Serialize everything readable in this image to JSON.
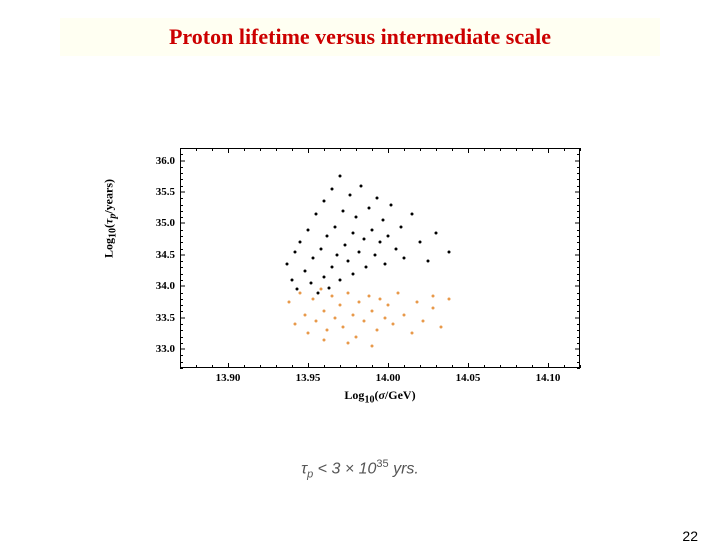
{
  "title": "Proton lifetime versus intermediate scale",
  "title_color": "#cc0000",
  "title_bg": "#fffff2",
  "page_number": "22",
  "caption_html": "τ<sub>p</sub> &lt; 3 × 10<sup>35</sup> yrs.",
  "chart": {
    "type": "scatter",
    "background_color": "#ffffff",
    "border_color": "#000000",
    "xlabel": "Log₁₀(σ/GeV)",
    "ylabel": "Log₁₀(τₚ/years)",
    "label_fontsize": 12,
    "tick_fontsize": 11,
    "xlim": [
      13.87,
      14.12
    ],
    "ylim": [
      32.7,
      36.2
    ],
    "xticks": [
      13.9,
      13.95,
      14.0,
      14.05,
      14.1
    ],
    "xtick_labels": [
      "13.90",
      "13.95",
      "14.00",
      "14.05",
      "14.10"
    ],
    "yticks": [
      33.0,
      33.5,
      34.0,
      34.5,
      35.0,
      35.5,
      36.0
    ],
    "ytick_labels": [
      "33.0",
      "33.5",
      "34.0",
      "34.5",
      "35.0",
      "35.5",
      "36.0"
    ],
    "x_minor_step": 0.01,
    "y_minor_step": 0.1,
    "marker_size": 3,
    "series": [
      {
        "color": "#000000",
        "points": [
          [
            13.937,
            34.35
          ],
          [
            13.94,
            34.1
          ],
          [
            13.942,
            34.55
          ],
          [
            13.943,
            33.95
          ],
          [
            13.945,
            34.7
          ],
          [
            13.948,
            34.25
          ],
          [
            13.95,
            34.9
          ],
          [
            13.952,
            34.05
          ],
          [
            13.953,
            34.45
          ],
          [
            13.955,
            35.15
          ],
          [
            13.956,
            33.9
          ],
          [
            13.958,
            34.6
          ],
          [
            13.96,
            35.35
          ],
          [
            13.96,
            34.15
          ],
          [
            13.962,
            34.8
          ],
          [
            13.963,
            33.98
          ],
          [
            13.965,
            35.55
          ],
          [
            13.965,
            34.3
          ],
          [
            13.967,
            34.95
          ],
          [
            13.968,
            34.5
          ],
          [
            13.97,
            35.75
          ],
          [
            13.97,
            34.1
          ],
          [
            13.972,
            35.2
          ],
          [
            13.973,
            34.65
          ],
          [
            13.975,
            34.4
          ],
          [
            13.976,
            35.45
          ],
          [
            13.978,
            34.85
          ],
          [
            13.978,
            34.2
          ],
          [
            13.98,
            35.1
          ],
          [
            13.982,
            34.55
          ],
          [
            13.983,
            35.6
          ],
          [
            13.985,
            34.75
          ],
          [
            13.986,
            34.3
          ],
          [
            13.988,
            35.25
          ],
          [
            13.99,
            34.9
          ],
          [
            13.992,
            34.5
          ],
          [
            13.993,
            35.4
          ],
          [
            13.995,
            34.7
          ],
          [
            13.997,
            35.05
          ],
          [
            13.998,
            34.35
          ],
          [
            14.0,
            34.8
          ],
          [
            14.002,
            35.3
          ],
          [
            14.005,
            34.6
          ],
          [
            14.008,
            34.95
          ],
          [
            14.01,
            34.45
          ],
          [
            14.015,
            35.15
          ],
          [
            14.02,
            34.7
          ],
          [
            14.025,
            34.4
          ],
          [
            14.03,
            34.85
          ],
          [
            14.038,
            34.55
          ]
        ]
      },
      {
        "color": "#e8994a",
        "points": [
          [
            13.938,
            33.75
          ],
          [
            13.942,
            33.4
          ],
          [
            13.945,
            33.9
          ],
          [
            13.948,
            33.55
          ],
          [
            13.95,
            33.25
          ],
          [
            13.953,
            33.8
          ],
          [
            13.955,
            33.45
          ],
          [
            13.958,
            33.95
          ],
          [
            13.96,
            33.6
          ],
          [
            13.962,
            33.3
          ],
          [
            13.965,
            33.85
          ],
          [
            13.967,
            33.5
          ],
          [
            13.97,
            33.7
          ],
          [
            13.972,
            33.35
          ],
          [
            13.975,
            33.9
          ],
          [
            13.978,
            33.55
          ],
          [
            13.98,
            33.2
          ],
          [
            13.982,
            33.75
          ],
          [
            13.985,
            33.45
          ],
          [
            13.988,
            33.85
          ],
          [
            13.99,
            33.6
          ],
          [
            13.993,
            33.3
          ],
          [
            13.995,
            33.8
          ],
          [
            13.998,
            33.5
          ],
          [
            14.0,
            33.7
          ],
          [
            14.003,
            33.4
          ],
          [
            14.006,
            33.9
          ],
          [
            14.01,
            33.55
          ],
          [
            14.015,
            33.25
          ],
          [
            14.018,
            33.75
          ],
          [
            14.022,
            33.45
          ],
          [
            14.028,
            33.65
          ],
          [
            14.033,
            33.35
          ],
          [
            14.038,
            33.8
          ],
          [
            14.028,
            33.85
          ],
          [
            13.96,
            33.15
          ],
          [
            13.975,
            33.1
          ],
          [
            13.99,
            33.05
          ]
        ]
      }
    ]
  }
}
